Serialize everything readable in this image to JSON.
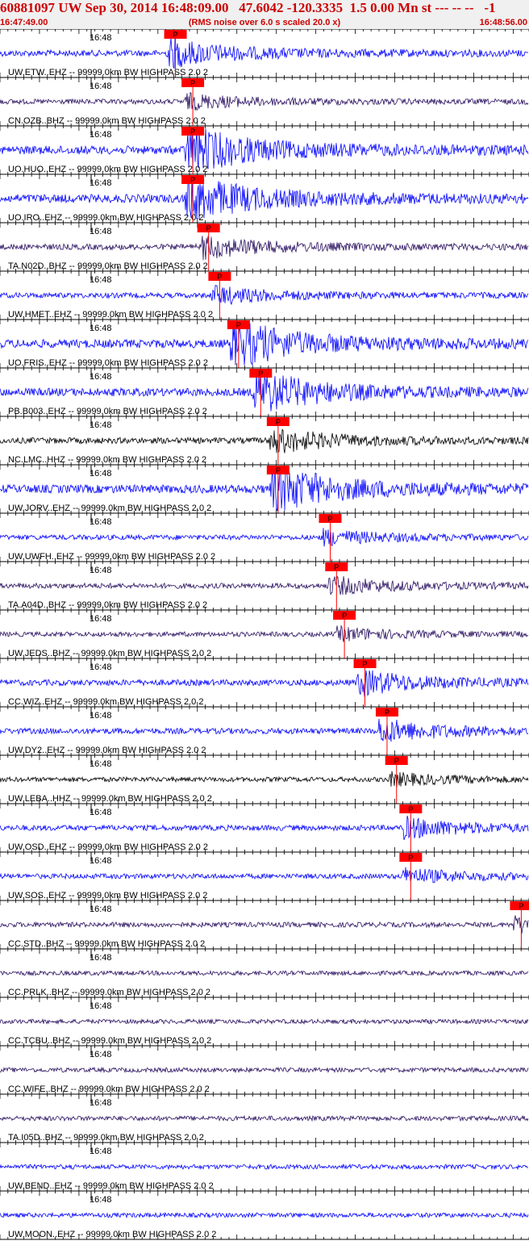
{
  "header": {
    "title": "60881097 UW Sep 30, 2014 16:48:09.00   47.6042 -120.3335  1.5 0.00 Mn st --- -- --   -1",
    "start_time": "16:47:49.00",
    "rms_note": "(RMS noise over 6.0 s scaled 20.0 x)",
    "end_time": "16:48:56.00"
  },
  "colors": {
    "header_text": "#cc0000",
    "header_bg": "#f0f0f0",
    "pick_box": "#ff0000",
    "pick_text": "#000000",
    "blue_trace": "#0000ff",
    "dark_trace": "#2a1060",
    "black_trace": "#000000"
  },
  "chart_data": {
    "type": "line",
    "x_range": [
      "16:47:49.00",
      "16:48:56.00"
    ],
    "minute_label": "16:48",
    "pick_label": "P",
    "traces": [
      {
        "label": "UW.ETW..EHZ -- 99999.0km BW  HIGHPASS  2.0  2",
        "pick_time_s": 21.2,
        "color": "blue",
        "amp": 0.55
      },
      {
        "label": "CN.OZB..BHZ -- 99999.0km BW  HIGHPASS  2.0  2",
        "pick_time_s": 23.4,
        "color": "dark",
        "amp": 0.3
      },
      {
        "label": "UO.HUO..EHZ -- 99999.0km BW  HIGHPASS  2.0  2",
        "pick_time_s": 23.4,
        "color": "blue",
        "amp": 1.0
      },
      {
        "label": "UO.IRO..EHZ -- 99999.0km BW  HIGHPASS  2.0  2",
        "pick_time_s": 23.4,
        "color": "blue",
        "amp": 1.0
      },
      {
        "label": "TA.N02D..BHZ -- 99999.0km BW  HIGHPASS  2.0  2",
        "pick_time_s": 25.4,
        "color": "dark",
        "amp": 0.45
      },
      {
        "label": "UW.HMET..EHZ -- 99999.0km BW  HIGHPASS  2.0  2",
        "pick_time_s": 26.8,
        "color": "blue",
        "amp": 0.35
      },
      {
        "label": "UO.FRIS..EHZ -- 99999.0km BW  HIGHPASS  2.0  2",
        "pick_time_s": 29.2,
        "color": "blue",
        "amp": 1.0
      },
      {
        "label": "PB.B003..EHZ -- 99999.0km BW  HIGHPASS  2.0  2",
        "pick_time_s": 32.0,
        "color": "blue",
        "amp": 0.9
      },
      {
        "label": "NC.LMC..HHZ -- 99999.0km BW  HIGHPASS  2.0  2",
        "pick_time_s": 34.2,
        "color": "black",
        "amp": 0.5
      },
      {
        "label": "UW.JORV..EHZ -- 99999.0km BW  HIGHPASS  2.0  2",
        "pick_time_s": 34.2,
        "color": "blue",
        "amp": 1.0
      },
      {
        "label": "UW.UWFH..EHZ -- 99999.0km BW  HIGHPASS  2.0  2",
        "pick_time_s": 40.8,
        "color": "blue",
        "amp": 0.3
      },
      {
        "label": "TA.A04D..BHZ -- 99999.0km BW  HIGHPASS  2.0  2",
        "pick_time_s": 41.6,
        "color": "dark",
        "amp": 0.35
      },
      {
        "label": "UW.JEDS..BHZ -- 99999.0km BW  HIGHPASS  2.0  2",
        "pick_time_s": 42.6,
        "color": "dark",
        "amp": 0.25
      },
      {
        "label": "CC.WIZ..EHZ -- 99999.0km BW  HIGHPASS  2.0  2",
        "pick_time_s": 45.2,
        "color": "blue",
        "amp": 0.5
      },
      {
        "label": "UW.DY2..EHZ -- 99999.0km BW  HIGHPASS  2.0  2",
        "pick_time_s": 48.0,
        "color": "blue",
        "amp": 0.45
      },
      {
        "label": "UW.LEBA..HHZ -- 99999.0km BW  HIGHPASS  2.0  2",
        "pick_time_s": 49.2,
        "color": "black",
        "amp": 0.25
      },
      {
        "label": "UW.OSD..EHZ -- 99999.0km BW  HIGHPASS  2.0  2",
        "pick_time_s": 51.0,
        "color": "blue",
        "amp": 0.4
      },
      {
        "label": "UW.SOS..EHZ -- 99999.0km BW  HIGHPASS  2.0  2",
        "pick_time_s": 51.0,
        "color": "blue",
        "amp": 0.3
      },
      {
        "label": "CC.STD..BHZ -- 99999.0km BW  HIGHPASS  2.0  2",
        "pick_time_s": 65.0,
        "color": "dark",
        "amp": 0.3
      },
      {
        "label": "CC.PRLK..BHZ -- 99999.0km BW  HIGHPASS  2.0  2",
        "pick_time_s": null,
        "color": "dark",
        "amp": 0.18
      },
      {
        "label": "CC.TCBU..BHZ -- 99999.0km BW  HIGHPASS  2.0  2",
        "pick_time_s": null,
        "color": "dark",
        "amp": 0.18
      },
      {
        "label": "CC.WIFE..BHZ -- 99999.0km BW  HIGHPASS  2.0  2",
        "pick_time_s": null,
        "color": "dark",
        "amp": 0.2
      },
      {
        "label": "TA.I05D..BHZ -- 99999.0km BW  HIGHPASS  2.0  2",
        "pick_time_s": null,
        "color": "dark",
        "amp": 0.25
      },
      {
        "label": "UW.BEND..EHZ -- 99999.0km BW  HIGHPASS  2.0  2",
        "pick_time_s": null,
        "color": "blue",
        "amp": 0.2
      },
      {
        "label": "UW.MOON..EHZ -- 99999.0km BW  HIGHPASS  2.0  2",
        "pick_time_s": null,
        "color": "blue",
        "amp": 0.2
      }
    ]
  }
}
